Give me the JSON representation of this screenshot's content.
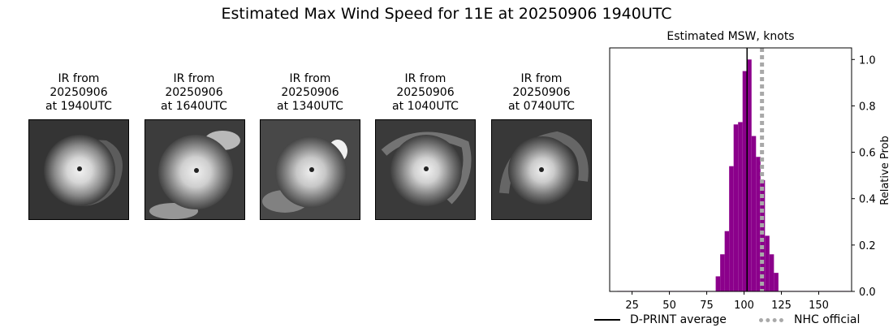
{
  "page": {
    "title": "Estimated Max Wind Speed for 11E at 20250906 1940UTC"
  },
  "ir_panels": [
    {
      "line1": "IR from",
      "line2": "20250906",
      "line3": "at 1940UTC"
    },
    {
      "line1": "IR from",
      "line2": "20250906",
      "line3": "at 1640UTC"
    },
    {
      "line1": "IR from",
      "line2": "20250906",
      "line3": "at 1340UTC"
    },
    {
      "line1": "IR from",
      "line2": "20250906",
      "line3": "at 1040UTC"
    },
    {
      "line1": "IR from",
      "line2": "20250906",
      "line3": "at 0740UTC"
    }
  ],
  "chart_data": {
    "type": "bar",
    "title": "Estimated MSW, knots",
    "xlabel": "",
    "ylabel": "Relative Prob",
    "xlim": [
      10,
      172
    ],
    "ylim": [
      0,
      1.05
    ],
    "x_ticks": [
      25,
      50,
      75,
      100,
      125,
      150
    ],
    "y_ticks": [
      0.0,
      0.2,
      0.4,
      0.6,
      0.8,
      1.0
    ],
    "y_tick_labels": [
      "0.0",
      "0.2",
      "0.4",
      "0.6",
      "0.8",
      "1.0"
    ],
    "bar_color": "#8b008b",
    "bin_width": 3,
    "bins": [
      15,
      18,
      21,
      24,
      27,
      30,
      33,
      36,
      39,
      42,
      45,
      48,
      51,
      54,
      57,
      60,
      63,
      66,
      69,
      72,
      75,
      78,
      81,
      84,
      87,
      90,
      93,
      96,
      99,
      102,
      105,
      108,
      111,
      114,
      117,
      120,
      123,
      126,
      129,
      132,
      135,
      138,
      141,
      144,
      147,
      150,
      153,
      156,
      159,
      162,
      165,
      168
    ],
    "values": [
      0.002,
      0.002,
      0.002,
      0.002,
      0.002,
      0.002,
      0.002,
      0.002,
      0.002,
      0.002,
      0.002,
      0.002,
      0.002,
      0.002,
      0.002,
      0.002,
      0.002,
      0.002,
      0.002,
      0.002,
      0.002,
      0.002,
      0.065,
      0.16,
      0.26,
      0.54,
      0.72,
      0.73,
      0.95,
      1.0,
      0.67,
      0.58,
      0.48,
      0.24,
      0.16,
      0.08,
      0.002,
      0.002,
      0.002,
      0.002,
      0.002,
      0.002,
      0.002,
      0.002,
      0.002,
      0.002,
      0.002,
      0.002,
      0.002,
      0.002,
      0.002,
      0.002
    ],
    "dprint_average": 102,
    "nhc_official": 112,
    "legend": [
      "D-PRINT average",
      "NHC official"
    ],
    "legend_placement": "bottom"
  }
}
